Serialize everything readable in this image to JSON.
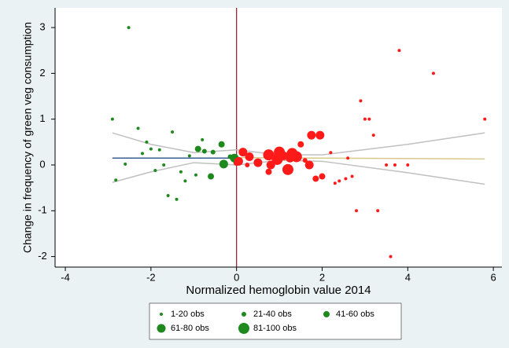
{
  "chart_data": {
    "type": "scatter",
    "xlabel": "Normalized hemoglobin value 2014",
    "ylabel": "Change in frequency of green veg consumption",
    "xlim": [
      -4.24,
      6.2
    ],
    "ylim": [
      -2.23,
      3.43
    ],
    "xticks": [
      -4,
      -2,
      0,
      2,
      4,
      6
    ],
    "yticks": [
      -2,
      -1,
      0,
      1,
      2,
      3
    ],
    "vline": 0,
    "vline_color": "#8b1a2b",
    "left_color": "#1e8a1e",
    "right_color": "#ff1a1a",
    "series": [
      {
        "name": "1-20 obs",
        "size": 2,
        "x": [
          -2.52,
          -2.9,
          -2.82,
          -2.3,
          -2.2,
          -2.1,
          -2.0,
          -1.9,
          -1.8,
          -1.7,
          -1.6,
          -1.5,
          -1.4,
          -1.3,
          -1.2,
          -1.1,
          -0.95,
          -0.8,
          -2.6,
          3.8,
          4.6,
          5.8,
          2.9,
          3.0,
          3.1,
          3.2,
          2.2,
          2.6,
          2.3,
          2.4,
          2.55,
          2.7,
          2.8,
          3.3,
          3.6,
          3.5,
          3.7,
          4.0
        ],
        "values": [
          3.0,
          1.0,
          -0.33,
          0.8,
          0.25,
          0.5,
          0.35,
          -0.12,
          0.33,
          0.0,
          -0.67,
          0.72,
          -0.75,
          -0.15,
          -0.35,
          0.2,
          -0.22,
          0.55,
          0.02,
          2.5,
          2.0,
          1.0,
          1.4,
          1.0,
          1.0,
          0.65,
          0.27,
          0.15,
          -0.4,
          -0.35,
          -0.3,
          -0.25,
          -1.0,
          -1.0,
          -2.0,
          0.0,
          0.0,
          0.0
        ]
      },
      {
        "name": "21-40 obs",
        "size": 3,
        "x": [
          -0.55,
          -0.15,
          -0.75,
          0.25,
          1.6
        ],
        "values": [
          0.28,
          0.18,
          0.3,
          0.0,
          0.1
        ]
      },
      {
        "name": "41-60 obs",
        "size": 4,
        "x": [
          -0.9,
          -0.35,
          -0.6,
          0.0,
          0.75,
          1.5,
          2.0,
          1.85
        ],
        "values": [
          0.35,
          0.45,
          -0.25,
          0.05,
          -0.15,
          0.45,
          -0.25,
          -0.3
        ]
      },
      {
        "name": "61-80 obs",
        "size": 5.5,
        "x": [
          -0.3,
          -0.05,
          0.15,
          0.3,
          0.5,
          0.8,
          1.1,
          1.25,
          1.7,
          1.75,
          1.95,
          0.05
        ],
        "values": [
          0.02,
          0.15,
          0.28,
          0.18,
          0.05,
          0.0,
          0.2,
          0.15,
          0.0,
          0.65,
          0.65,
          0.08
        ]
      },
      {
        "name": "81-100 obs",
        "size": 7,
        "x": [
          0.75,
          1.0,
          1.3,
          1.4,
          0.95,
          1.2
        ],
        "values": [
          0.22,
          0.28,
          0.25,
          0.18,
          0.12,
          -0.1
        ]
      }
    ],
    "lines": [
      {
        "color": "#3a5f8f",
        "x": [
          -2.9,
          0
        ],
        "values": [
          0.15,
          0.15
        ]
      },
      {
        "color": "#d8c98a",
        "x": [
          0,
          5.8
        ],
        "values": [
          0.16,
          0.13
        ]
      },
      {
        "color": "#c0c0c0",
        "x": [
          -2.9,
          -2,
          -1,
          0
        ],
        "values": [
          0.7,
          0.45,
          0.27,
          0.33
        ]
      },
      {
        "color": "#c0c0c0",
        "x": [
          -2.9,
          -2,
          -1,
          0
        ],
        "values": [
          -0.38,
          -0.15,
          0.05,
          0.0
        ]
      },
      {
        "color": "#c0c0c0",
        "x": [
          0,
          1,
          2,
          4,
          5.8
        ],
        "values": [
          0.33,
          0.22,
          0.22,
          0.45,
          0.7
        ]
      },
      {
        "color": "#c0c0c0",
        "x": [
          0,
          1,
          2,
          4,
          5.8
        ],
        "values": [
          0.0,
          0.1,
          0.08,
          -0.17,
          -0.42
        ]
      }
    ]
  }
}
